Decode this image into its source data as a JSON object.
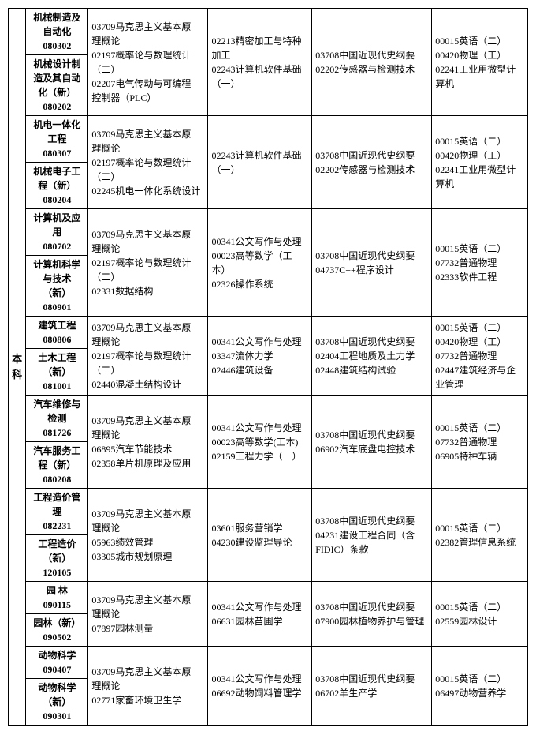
{
  "sidebar_label": "本科",
  "groups": [
    {
      "majors": [
        {
          "name": "机械制造及自动化",
          "code": "080302"
        },
        {
          "name": "机械设计制造及其自动化（新）",
          "code": "080202"
        }
      ],
      "col2": "03709马克思主义基本原\n理概论\n02197概率论与数理统计（二）\n02207电气传动与可编程\n控制器（PLC）",
      "col3": "02213精密加工与特种加工\n02243计算机软件基础（一）",
      "col4": "03708中国近现代史纲要\n02202传感器与检测技术",
      "col5": "00015英语（二）\n00420物理（工）\n02241工业用微型计\n算机"
    },
    {
      "majors": [
        {
          "name": "机电一体化工程",
          "code": "080307"
        },
        {
          "name": "机械电子工程（新）",
          "code": "080204"
        }
      ],
      "col2": "03709马克思主义基本原\n理概论\n02197概率论与数理统计（二）\n02245机电一体化系统设计",
      "col3": "02243计算机软件基础（一）",
      "col4": "03708中国近现代史纲要\n02202传感器与检测技术",
      "col5": "00015英语（二）\n00420物理（工）\n02241工业用微型计\n算机"
    },
    {
      "majors": [
        {
          "name": "计算机及应用",
          "code": "080702"
        },
        {
          "name": "计算机科学与技术（新）",
          "code": "080901"
        }
      ],
      "col2": "03709马克思主义基本原\n理概论\n02197概率论与数理统计（二）\n02331数据结构",
      "col3": "00341公文写作与处理\n00023高等数学（工本）\n02326操作系统",
      "col4": "03708中国近现代史纲要\n04737C++程序设计",
      "col5": "00015英语（二）\n07732普通物理\n02333软件工程"
    },
    {
      "majors": [
        {
          "name": "建筑工程",
          "code": "080806"
        },
        {
          "name": "土木工程（新）",
          "code": "081001"
        }
      ],
      "col2": "03709马克思主义基本原\n理概论\n02197概率论与数理统计（二）\n02440混凝土结构设计",
      "col3": "00341公文写作与处理\n03347流体力学\n02446建筑设备",
      "col4": "03708中国近现代史纲要\n02404工程地质及土力学\n02448建筑结构试验",
      "col5": "00015英语（二）\n00420物理（工）\n07732普通物理\n02447建筑经济与企\n业管理"
    },
    {
      "majors": [
        {
          "name": "汽车维修与检测",
          "code": "081726"
        },
        {
          "name": "汽车服务工程（新）",
          "code": "080208"
        }
      ],
      "col2": "03709马克思主义基本原\n理概论\n06895汽车节能技术\n02358单片机原理及应用",
      "col3": "00341公文写作与处理\n00023高等数学(工本)\n02159工程力学（一）",
      "col4": "03708中国近现代史纲要\n06902汽车底盘电控技术",
      "col5": "00015英语（二）\n07732普通物理\n06905特种车辆"
    },
    {
      "majors": [
        {
          "name": "工程造价管理",
          "code": "082231"
        },
        {
          "name": "工程造价（新）",
          "code": "120105"
        }
      ],
      "col2": "03709马克思主义基本原\n理概论\n05963绩效管理\n03305城市规划原理",
      "col3": "03601服务营销学\n04230建设监理导论",
      "col4": "03708中国近现代史纲要\n04231建设工程合同（含FIDIC）条款",
      "col5": "00015英语（二）\n02382管理信息系统"
    },
    {
      "majors": [
        {
          "name": "园  林",
          "code": "090115"
        },
        {
          "name": "园林（新）",
          "code": "090502"
        }
      ],
      "col2": "03709马克思主义基本原\n理概论\n07897园林测量",
      "col3": "00341公文写作与处理\n06631园林苗圃学",
      "col4": "03708中国近现代史纲要\n07900园林植物养护与管理",
      "col5": "00015英语（二）\n02559园林设计"
    },
    {
      "majors": [
        {
          "name": "动物科学",
          "code": "090407"
        },
        {
          "name": "动物科学（新）",
          "code": "090301"
        }
      ],
      "col2": "03709马克思主义基本原\n理概论\n02771家畜环境卫生学",
      "col3": "00341公文写作与处理\n06692动物饲料管理学",
      "col4": "03708中国近现代史纲要\n06702羊生产学",
      "col5": "00015英语（二）\n06497动物营养学"
    }
  ]
}
